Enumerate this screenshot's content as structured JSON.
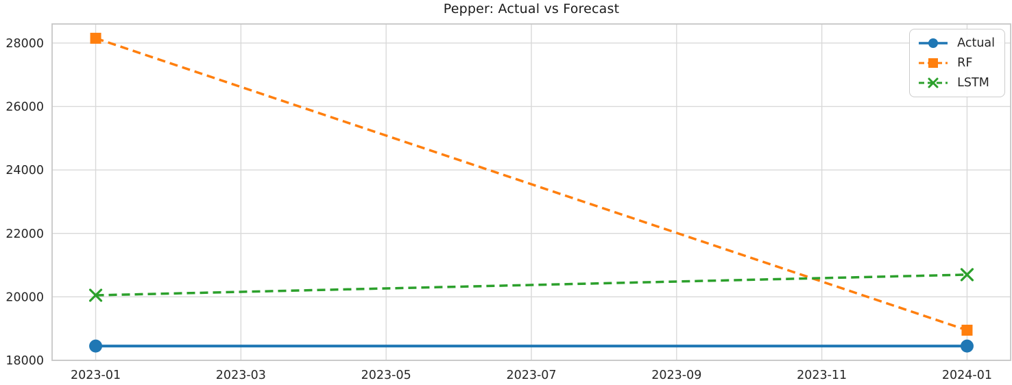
{
  "chart_data": {
    "type": "line",
    "title": "Pepper: Actual vs Forecast",
    "xlabel": "",
    "ylabel": "",
    "x": [
      "2023-01",
      "2024-01"
    ],
    "x_tick_labels": [
      "2023-01",
      "2023-03",
      "2023-05",
      "2023-07",
      "2023-09",
      "2023-11",
      "2024-01"
    ],
    "y_ticks": [
      18000,
      20000,
      22000,
      24000,
      26000,
      28000
    ],
    "ylim": [
      18000,
      28600
    ],
    "grid": true,
    "legend_position": "upper right",
    "background_color": "#ffffff",
    "grid_color": "#d9d9d9",
    "spine_color": "#c6c6c6",
    "text_color": "#262626",
    "series": [
      {
        "name": "Actual",
        "values": [
          18450,
          18450
        ],
        "color": "#1f77b4",
        "line_style": "solid",
        "marker": "circle"
      },
      {
        "name": "RF",
        "values": [
          28150,
          18950
        ],
        "color": "#ff7f0e",
        "line_style": "dashed",
        "marker": "square"
      },
      {
        "name": "LSTM",
        "values": [
          20050,
          20700
        ],
        "color": "#2ca02c",
        "line_style": "dashed",
        "marker": "x"
      }
    ]
  }
}
